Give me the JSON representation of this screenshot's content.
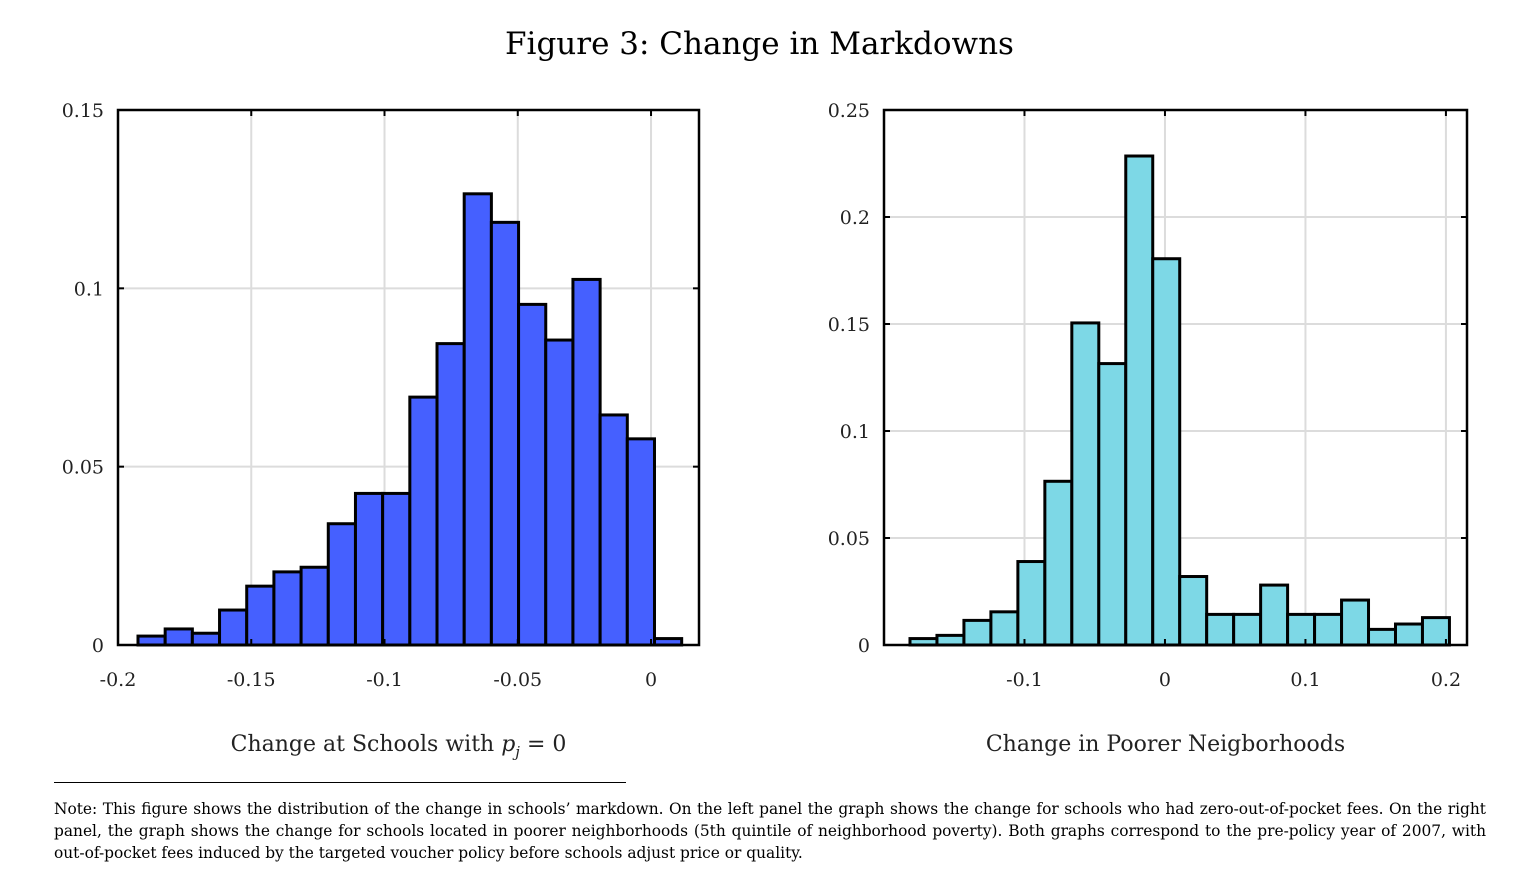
{
  "figure_title": "Figure 3: Change in Markdowns",
  "note": "Note: This figure shows the distribution of the change in schools’ markdown. On the left panel the graph shows the change for schools who had zero-out-of-pocket fees. On the right panel, the graph shows the change for schools located in poorer neighborhoods (5th quintile of neighborhood poverty). Both graphs correspond to the pre-policy year of 2007, with out-of-pocket fees induced by the targeted voucher policy before schools adjust price or quality.",
  "colors": {
    "left_bars": "#4560ff",
    "right_bars": "#7dd8e6",
    "grid": "#dcdcdc",
    "edge": "#000000"
  },
  "chart_data": [
    {
      "type": "bar",
      "histogram": true,
      "xlabel": "Change at Schools with p_j = 0",
      "xlabel_parts": {
        "pre": "Change at Schools with ",
        "var": "p",
        "sub": "j",
        "post": " = 0"
      },
      "ylabel": "",
      "xlim": [
        -0.2,
        0.018
      ],
      "ylim": [
        0,
        0.15
      ],
      "xticks": [
        -0.2,
        -0.15,
        -0.1,
        -0.05,
        0
      ],
      "xtick_labels": [
        "-0.2",
        "-0.15",
        "-0.1",
        "-0.05",
        "0"
      ],
      "yticks": [
        0,
        0.05,
        0.1,
        0.15
      ],
      "ytick_labels": [
        "0",
        "0.05",
        "0.1",
        "0.15"
      ],
      "grid": true,
      "bin_width": 0.0102,
      "bin_lefts": [
        -0.1925,
        -0.1823,
        -0.1721,
        -0.1619,
        -0.1517,
        -0.1415,
        -0.1313,
        -0.1211,
        -0.1109,
        -0.1007,
        -0.0905,
        -0.0803,
        -0.0701,
        -0.0599,
        -0.0497,
        -0.0395,
        -0.0293,
        -0.0191,
        -0.0089,
        0.0013
      ],
      "values": [
        0.0025,
        0.0045,
        0.0033,
        0.0098,
        0.0165,
        0.0205,
        0.0218,
        0.034,
        0.0425,
        0.0425,
        0.0695,
        0.0845,
        0.1265,
        0.1185,
        0.0955,
        0.0855,
        0.1025,
        0.0645,
        0.0578,
        0.0018
      ]
    },
    {
      "type": "bar",
      "histogram": true,
      "xlabel": "Change in Poorer Neigborhoods",
      "ylabel": "",
      "xlim": [
        -0.2,
        0.215
      ],
      "ylim": [
        0,
        0.25
      ],
      "xticks": [
        -0.1,
        0,
        0.1,
        0.2
      ],
      "xtick_labels": [
        "-0.1",
        "0",
        "0.1",
        "0.2"
      ],
      "yticks": [
        0,
        0.05,
        0.1,
        0.15,
        0.2,
        0.25
      ],
      "ytick_labels": [
        "0",
        "0.05",
        "0.1",
        "0.15",
        "0.2",
        "0.25"
      ],
      "grid": true,
      "bin_width": 0.0192,
      "bin_lefts": [
        -0.1815,
        -0.1623,
        -0.1431,
        -0.1239,
        -0.1047,
        -0.0855,
        -0.0663,
        -0.0471,
        -0.0279,
        -0.0087,
        0.0105,
        0.0297,
        0.0489,
        0.0681,
        0.0873,
        0.1065,
        0.1257,
        0.1449,
        0.1641,
        0.1833
      ],
      "values": [
        0.003,
        0.0045,
        0.0115,
        0.0155,
        0.039,
        0.0765,
        0.1505,
        0.1315,
        0.2285,
        0.1805,
        0.032,
        0.0143,
        0.0143,
        0.028,
        0.0143,
        0.0143,
        0.021,
        0.0073,
        0.0098,
        0.0128
      ]
    }
  ]
}
